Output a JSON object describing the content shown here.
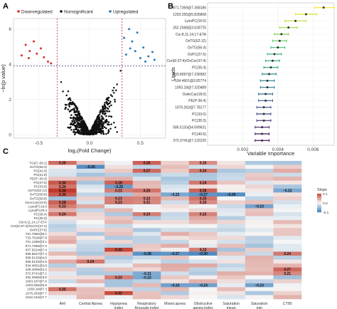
{
  "panels": {
    "a": {
      "letter": "A"
    },
    "b": {
      "letter": "B"
    },
    "c": {
      "letter": "C"
    }
  },
  "colors": {
    "down": "#d73027",
    "nonsig": "#111111",
    "up": "#2c7bb6",
    "threshold": "#c62828",
    "heat_pos": "#c0392b",
    "heat_neg": "#2e75b6",
    "heat_mid": "#f7f7f7"
  },
  "chart_data": [
    {
      "type": "scatter",
      "xlabel": "log₂(Fold Change)",
      "ylabel": "−ln(p value)",
      "xlim": [
        -0.75,
        0.75
      ],
      "ylim": [
        -0.2,
        6.6
      ],
      "xticks": [
        "-0.5",
        "0.0",
        "0.5"
      ],
      "xtick_values": [
        -0.5,
        0.0,
        0.5
      ],
      "yticks": [
        "0",
        "2",
        "4",
        "6"
      ],
      "ytick_values": [
        0,
        2,
        4,
        6
      ],
      "legend": [
        "Downregulated",
        "Nonsignificant",
        "Upregulated"
      ],
      "legend_position": "top",
      "fc_thresholds": [
        -0.32,
        0.32
      ],
      "p_threshold": 3.9,
      "series": [
        {
          "name": "Downregulated",
          "points": [
            [
              -0.63,
              5.1
            ],
            [
              -0.59,
              4.75
            ],
            [
              -0.55,
              5.3
            ],
            [
              -0.48,
              4.9
            ],
            [
              -0.45,
              4.4
            ],
            [
              -0.52,
              4.6
            ],
            [
              -0.41,
              4.15
            ],
            [
              -0.67,
              4.5
            ],
            [
              -0.38,
              4.05
            ],
            [
              -0.6,
              4.35
            ]
          ]
        },
        {
          "name": "Upregulated",
          "points": [
            [
              0.39,
              6.0
            ],
            [
              0.42,
              5.3
            ],
            [
              0.47,
              5.8
            ],
            [
              0.53,
              4.95
            ],
            [
              0.58,
              4.45
            ],
            [
              0.64,
              4.25
            ],
            [
              0.45,
              4.75
            ],
            [
              0.5,
              4.35
            ],
            [
              0.36,
              4.55
            ],
            [
              0.55,
              4.15
            ],
            [
              0.4,
              4.9
            ],
            [
              0.62,
              4.7
            ],
            [
              0.34,
              5.5
            ]
          ]
        }
      ],
      "nonsig_count": 880
    },
    {
      "type": "dot-errorbar",
      "xlabel": "Variable Importance",
      "ylabel": "Lipids",
      "xlim": [
        0,
        0.0072
      ],
      "xticks": [
        "0.002",
        "0.004",
        "0.006"
      ],
      "xtick_values": [
        0.002,
        0.004,
        0.006
      ],
      "categories": [
        "871.7369@7.368186",
        "1203.255@5.835808",
        "LysoPC(16:0)",
        "262.2568@3.628725",
        "Cis-8,11,14,17-ETA",
        "OxTG(62:12)",
        "OxTG(56:4)",
        "OxPC(37:6)",
        "Cer(t0:37:4)/OxCer(37:4)",
        "PC(35:4)",
        "593.8097@7.236582",
        "534.4601@3.82774",
        "1093.18@7.320489",
        "OxAcCar(18:0)",
        "PE(P-36:4)",
        "1076.263@7.78177",
        "PC(33:0)",
        "PC(35:3)",
        "586.5133@4.699631",
        "PC(40:6)",
        "372.0741@7.132225"
      ],
      "values": [
        0.0066,
        0.0056,
        0.005,
        0.0046,
        0.0042,
        0.0041,
        0.004,
        0.0038,
        0.0037,
        0.0036,
        0.0035,
        0.0034,
        0.0034,
        0.0033,
        0.0033,
        0.0032,
        0.0032,
        0.0032,
        0.0031,
        0.0031,
        0.0031
      ],
      "lower": [
        0.0061,
        0.005,
        0.0044,
        0.0041,
        0.0038,
        0.0037,
        0.0036,
        0.0034,
        0.0033,
        0.0032,
        0.0031,
        0.003,
        0.003,
        0.0029,
        0.0029,
        0.0028,
        0.0028,
        0.0028,
        0.0027,
        0.0027,
        0.0027
      ],
      "upper": [
        0.0072,
        0.0062,
        0.0056,
        0.0051,
        0.0046,
        0.0045,
        0.0044,
        0.0042,
        0.0041,
        0.004,
        0.0039,
        0.0038,
        0.0038,
        0.0037,
        0.0037,
        0.0036,
        0.0036,
        0.0036,
        0.0035,
        0.0035,
        0.0035
      ]
    },
    {
      "type": "heatmap",
      "columns": [
        "AHI",
        "Central Apnea",
        "Hypopnea index",
        "Respiratory Arousals index",
        "Mixed apnea",
        "Obstructive apnea index",
        "Saturation mean",
        "Saturation min",
        "CT90"
      ],
      "rows": [
        "TG(O:-56:1)",
        "OxTG(56:4)",
        "PG(42:3)",
        "PG(31:8)",
        "PE(P:-36:4)",
        "PG(37:6)",
        "PC(33:0)",
        "OxTG(62:12)",
        "OxTG(58:9)",
        "OxTG(56:8)",
        "OxAcCar(18:0)",
        "Lyso(P):16:0",
        "Lyso(P):20:4",
        "PC(35:4)",
        "PC(35:3)",
        "Cis-8,11,14,17-ETA",
        "Cer(t0:37:4)/OxCer(37:4)",
        "OxPC(37:6)",
        "791.7950@8.1",
        "733.7629@7.8",
        "701.1285@3.1",
        "871.7369@7.3",
        "637.5224@7.4",
        "599.6547@7.4",
        "588.5133@4.6",
        "586.5133@4.6",
        "534.4601@3.8",
        "426.4269@4.2",
        "372.0741@7.1",
        "262.2568@3.6",
        "1563.197@7.6",
        "1203.255@5.8",
        "1093.18@7.3",
        "1076.263@7.7",
        "1042.104@7.7"
      ],
      "legend_title": "Slope",
      "legend_ticks": [
        "0.1",
        "0.0",
        "-0.1"
      ],
      "legend_values": [
        0.1,
        0.0,
        -0.1
      ],
      "legend_position": "right",
      "cells": [
        [
          0.26,
          null,
          null,
          0.28,
          null,
          0.2,
          null,
          null,
          null
        ],
        [
          null,
          -0.29,
          null,
          null,
          null,
          null,
          null,
          null,
          null
        ],
        [
          null,
          null,
          null,
          0.27,
          null,
          0.24,
          null,
          null,
          null
        ],
        [
          null,
          null,
          null,
          null,
          null,
          null,
          null,
          null,
          null
        ],
        [
          null,
          null,
          null,
          null,
          null,
          null,
          null,
          null,
          null
        ],
        [
          0.3,
          null,
          0.28,
          null,
          null,
          0.24,
          null,
          null,
          null
        ],
        [
          0.24,
          null,
          -0.25,
          null,
          null,
          null,
          null,
          null,
          null
        ],
        [
          0.36,
          null,
          0.23,
          0.25,
          null,
          0.28,
          null,
          null,
          -0.22
        ],
        [
          0.3,
          null,
          null,
          null,
          -0.22,
          -0.27,
          -0.29,
          null,
          null
        ],
        [
          null,
          null,
          0.23,
          0.22,
          null,
          0.25,
          null,
          null,
          null
        ],
        [
          0.28,
          null,
          0.23,
          0.21,
          null,
          0.2,
          null,
          null,
          null
        ],
        [
          0.23,
          null,
          null,
          null,
          null,
          null,
          null,
          -0.23,
          null
        ],
        [
          null,
          null,
          null,
          null,
          null,
          null,
          null,
          null,
          null
        ],
        [
          0.24,
          null,
          null,
          0.23,
          null,
          0.22,
          null,
          null,
          null
        ],
        [
          null,
          null,
          null,
          null,
          null,
          null,
          null,
          null,
          null
        ],
        [
          null,
          null,
          null,
          null,
          null,
          null,
          null,
          null,
          null
        ],
        [
          null,
          null,
          null,
          null,
          null,
          null,
          null,
          null,
          null
        ],
        [
          null,
          null,
          null,
          null,
          null,
          null,
          null,
          null,
          null
        ],
        [
          null,
          null,
          null,
          null,
          null,
          null,
          null,
          null,
          null
        ],
        [
          null,
          null,
          null,
          null,
          null,
          null,
          null,
          null,
          null
        ],
        [
          null,
          null,
          null,
          null,
          null,
          null,
          null,
          null,
          null
        ],
        [
          null,
          null,
          null,
          null,
          null,
          null,
          null,
          null,
          null
        ],
        [
          null,
          null,
          0.33,
          null,
          null,
          0.23,
          null,
          null,
          null
        ],
        [
          null,
          null,
          null,
          -0.28,
          -0.27,
          -0.3,
          null,
          null,
          0.24
        ],
        [
          null,
          null,
          null,
          null,
          null,
          null,
          null,
          null,
          null
        ],
        [
          null,
          0.24,
          null,
          null,
          null,
          null,
          null,
          null,
          null
        ],
        [
          null,
          null,
          null,
          null,
          null,
          null,
          null,
          null,
          null
        ],
        [
          null,
          null,
          null,
          null,
          null,
          null,
          null,
          null,
          0.27
        ],
        [
          null,
          null,
          null,
          -0.21,
          null,
          null,
          null,
          null,
          0.21
        ],
        [
          null,
          null,
          0.23,
          -0.22,
          null,
          null,
          null,
          null,
          null
        ],
        [
          null,
          null,
          null,
          null,
          null,
          null,
          null,
          null,
          null
        ],
        [
          null,
          null,
          null,
          null,
          -0.24,
          -0.24,
          null,
          -0.23,
          null
        ],
        [
          0.25,
          null,
          null,
          null,
          null,
          null,
          null,
          null,
          null
        ],
        [
          null,
          null,
          0.32,
          null,
          null,
          null,
          null,
          null,
          null
        ],
        [
          null,
          null,
          null,
          null,
          null,
          null,
          null,
          null,
          null
        ]
      ]
    }
  ]
}
